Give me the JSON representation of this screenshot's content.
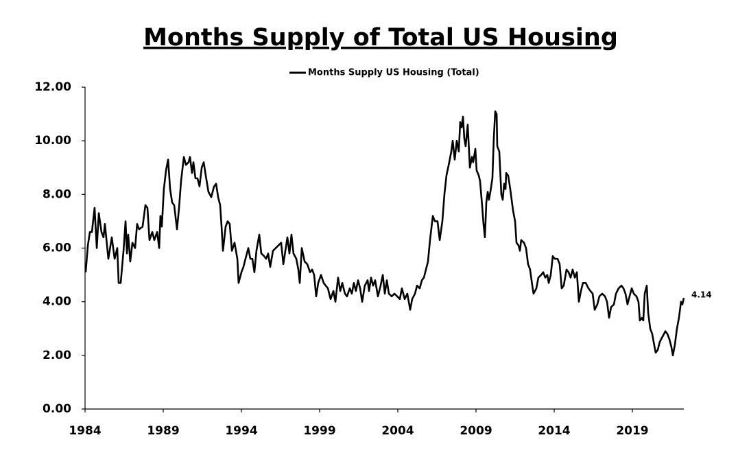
{
  "chart_data": {
    "type": "line",
    "title": "Months Supply of Total US Housing",
    "x": [
      1984.04,
      1984.18,
      1984.31,
      1984.44,
      1984.61,
      1984.75,
      1984.88,
      1985.05,
      1985.18,
      1985.27,
      1985.49,
      1985.71,
      1985.89,
      1986.06,
      1986.15,
      1986.28,
      1986.46,
      1986.59,
      1986.68,
      1986.76,
      1986.89,
      1987.03,
      1987.2,
      1987.33,
      1987.46,
      1987.68,
      1987.86,
      1987.99,
      1988.12,
      1988.3,
      1988.43,
      1988.61,
      1988.74,
      1988.82,
      1988.91,
      1989.04,
      1989.18,
      1989.31,
      1989.44,
      1989.57,
      1989.7,
      1989.88,
      1990.01,
      1990.14,
      1990.32,
      1990.45,
      1990.62,
      1990.71,
      1990.84,
      1990.93,
      1991.06,
      1991.19,
      1991.32,
      1991.46,
      1991.59,
      1991.72,
      1991.89,
      1992.07,
      1992.25,
      1992.38,
      1992.51,
      1992.64,
      1992.73,
      1992.82,
      1992.99,
      1993.12,
      1993.25,
      1993.39,
      1993.56,
      1993.74,
      1993.82,
      1994,
      1994.13,
      1994.26,
      1994.44,
      1994.57,
      1994.7,
      1994.83,
      1994.96,
      1995.14,
      1995.27,
      1995.45,
      1995.58,
      1995.71,
      1995.84,
      1996.02,
      1996.19,
      1996.37,
      1996.54,
      1996.68,
      1996.81,
      1996.94,
      1997.07,
      1997.2,
      1997.33,
      1997.51,
      1997.64,
      1997.73,
      1997.86,
      1998.04,
      1998.21,
      1998.39,
      1998.52,
      1998.65,
      1998.78,
      1998.91,
      1999.09,
      1999.26,
      1999.39,
      1999.53,
      1999.7,
      1999.88,
      2000.01,
      2000.18,
      2000.32,
      2000.45,
      2000.62,
      2000.75,
      2000.93,
      2001.06,
      2001.19,
      2001.32,
      2001.46,
      2001.59,
      2001.72,
      2001.89,
      2002.07,
      2002.16,
      2002.29,
      2002.42,
      2002.55,
      2002.73,
      2002.9,
      2003.04,
      2003.17,
      2003.3,
      2003.43,
      2003.61,
      2003.78,
      2003.96,
      2004.13,
      2004.26,
      2004.44,
      2004.61,
      2004.79,
      2004.92,
      2005.1,
      2005.23,
      2005.4,
      2005.54,
      2005.67,
      2005.8,
      2005.93,
      2006.06,
      2006.24,
      2006.37,
      2006.54,
      2006.68,
      2006.85,
      2006.98,
      2007.11,
      2007.29,
      2007.42,
      2007.51,
      2007.64,
      2007.77,
      2007.9,
      2007.99,
      2008.08,
      2008.17,
      2008.25,
      2008.34,
      2008.47,
      2008.61,
      2008.74,
      2008.82,
      2008.96,
      2009.04,
      2009.18,
      2009.26,
      2009.39,
      2009.48,
      2009.57,
      2009.66,
      2009.75,
      2009.83,
      2009.92,
      2010.05,
      2010.14,
      2010.23,
      2010.32,
      2010.36,
      2010.49,
      2010.62,
      2010.71,
      2010.8,
      2010.89,
      2010.93,
      2011.06,
      2011.19,
      2011.37,
      2011.5,
      2011.59,
      2011.72,
      2011.81,
      2011.89,
      2012.07,
      2012.2,
      2012.33,
      2012.46,
      2012.6,
      2012.68,
      2012.86,
      2012.99,
      2013.17,
      2013.3,
      2013.43,
      2013.56,
      2013.65,
      2013.78,
      2013.91,
      2014.04,
      2014.22,
      2014.35,
      2014.48,
      2014.61,
      2014.79,
      2014.92,
      2015.05,
      2015.18,
      2015.32,
      2015.45,
      2015.58,
      2015.71,
      2015.84,
      2016.02,
      2016.19,
      2016.32,
      2016.46,
      2016.59,
      2016.76,
      2016.89,
      2017.07,
      2017.25,
      2017.38,
      2017.51,
      2017.64,
      2017.82,
      2017.95,
      2018.12,
      2018.3,
      2018.43,
      2018.56,
      2018.69,
      2018.82,
      2018.96,
      2019.09,
      2019.26,
      2019.39,
      2019.48,
      2019.61,
      2019.7,
      2019.79,
      2019.92,
      2020.01,
      2020.14,
      2020.27,
      2020.36,
      2020.49,
      2020.62,
      2020.75,
      2020.93,
      2021.11,
      2021.24,
      2021.37,
      2021.5,
      2021.59,
      2021.72,
      2021.85,
      2021.98,
      2022.11,
      2022.2,
      2022.29
    ],
    "series": [
      {
        "name": "Months Supply US Housing (Total)",
        "color": "#000000",
        "values": [
          5.1,
          6.1,
          6.6,
          6.6,
          7.5,
          6.0,
          7.3,
          6.6,
          6.4,
          6.9,
          5.6,
          6.4,
          5.6,
          6.0,
          4.7,
          4.7,
          5.9,
          7.0,
          5.8,
          6.5,
          5.5,
          6.2,
          6.0,
          6.9,
          6.7,
          6.8,
          7.6,
          7.5,
          6.3,
          6.6,
          6.3,
          6.6,
          6.0,
          7.2,
          6.8,
          8.2,
          8.9,
          9.3,
          8.2,
          7.7,
          7.6,
          6.7,
          7.5,
          8.5,
          9.4,
          9.1,
          9.2,
          9.4,
          8.8,
          9.2,
          8.6,
          8.6,
          8.3,
          9.0,
          9.2,
          8.7,
          8.1,
          7.9,
          8.3,
          8.4,
          7.9,
          7.6,
          6.8,
          5.9,
          6.8,
          7.0,
          6.9,
          5.9,
          6.2,
          5.6,
          4.7,
          5.1,
          5.3,
          5.6,
          6.0,
          5.6,
          5.6,
          5.1,
          5.9,
          6.5,
          5.8,
          5.7,
          5.6,
          5.8,
          5.3,
          5.9,
          6.0,
          6.1,
          6.2,
          5.4,
          5.9,
          6.4,
          5.8,
          6.5,
          5.8,
          5.6,
          5.2,
          4.7,
          6.0,
          5.5,
          5.4,
          5.1,
          5.2,
          5.0,
          4.2,
          4.7,
          5.0,
          4.7,
          4.6,
          4.5,
          4.1,
          4.4,
          4.0,
          4.9,
          4.4,
          4.7,
          4.3,
          4.2,
          4.5,
          4.3,
          4.7,
          4.4,
          4.8,
          4.5,
          4.0,
          4.6,
          4.8,
          4.4,
          4.9,
          4.6,
          4.8,
          4.2,
          4.6,
          5.0,
          4.3,
          4.8,
          4.3,
          4.2,
          4.3,
          4.2,
          4.1,
          4.5,
          4.1,
          4.3,
          3.7,
          4.1,
          4.3,
          4.6,
          4.5,
          4.8,
          4.9,
          5.2,
          5.5,
          6.3,
          7.2,
          7.0,
          7.0,
          6.3,
          7.0,
          8.0,
          8.7,
          9.2,
          9.6,
          10.0,
          9.3,
          10.0,
          9.6,
          10.7,
          10.5,
          10.9,
          10.1,
          9.8,
          10.6,
          9.0,
          9.4,
          9.2,
          9.7,
          8.9,
          8.7,
          8.5,
          7.6,
          6.9,
          6.4,
          7.7,
          8.1,
          7.8,
          8.1,
          8.6,
          10.1,
          11.1,
          11.0,
          9.8,
          9.6,
          8.0,
          7.8,
          8.4,
          8.2,
          8.8,
          8.7,
          8.2,
          7.4,
          7.0,
          6.2,
          6.1,
          5.9,
          6.3,
          6.2,
          6.0,
          5.4,
          5.2,
          4.6,
          4.3,
          4.5,
          4.9,
          5.0,
          5.1,
          4.9,
          5.0,
          4.7,
          5.0,
          5.7,
          5.6,
          5.6,
          5.4,
          4.5,
          4.6,
          5.2,
          5.1,
          4.9,
          5.2,
          4.9,
          5.1,
          4.0,
          4.4,
          4.7,
          4.7,
          4.5,
          4.4,
          4.3,
          3.7,
          3.9,
          4.2,
          4.3,
          4.2,
          4.0,
          3.4,
          3.8,
          3.9,
          4.3,
          4.5,
          4.6,
          4.5,
          4.3,
          3.9,
          4.2,
          4.5,
          4.3,
          4.2,
          4.0,
          3.3,
          3.4,
          3.3,
          4.3,
          4.6,
          3.6,
          3.0,
          2.8,
          2.5,
          2.1,
          2.2,
          2.5,
          2.7,
          2.9,
          2.8,
          2.6,
          2.3,
          2.0,
          2.4,
          3.0,
          3.4,
          4.0,
          3.9,
          4.14
        ]
      }
    ],
    "xlim": [
      1984,
      2022.29
    ],
    "xticks": [
      1984,
      1989,
      1994,
      1999,
      2004,
      2009,
      2014,
      2019
    ],
    "ylim": [
      0,
      12
    ],
    "yticks": [
      {
        "value": 0,
        "label": "0.00"
      },
      {
        "value": 2,
        "label": "2.00"
      },
      {
        "value": 4,
        "label": "4.00"
      },
      {
        "value": 6,
        "label": "6.00"
      },
      {
        "value": 8,
        "label": "8.00"
      },
      {
        "value": 10,
        "label": "10.00"
      },
      {
        "value": 12,
        "label": "12.00"
      }
    ],
    "grid": false
  }
}
